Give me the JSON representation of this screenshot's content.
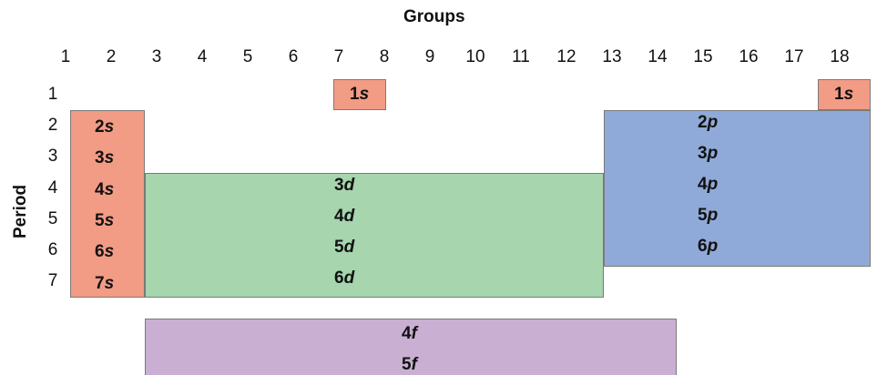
{
  "title": "Groups",
  "ylabel": "Period",
  "groups": [
    "1",
    "2",
    "3",
    "4",
    "5",
    "6",
    "7",
    "8",
    "9",
    "10",
    "11",
    "12",
    "13",
    "14",
    "15",
    "16",
    "17",
    "18"
  ],
  "periods": [
    "1",
    "2",
    "3",
    "4",
    "5",
    "6",
    "7"
  ],
  "blocks": {
    "s": {
      "color": "#f29b85",
      "labels": [
        {
          "n": "1",
          "o": "s"
        },
        {
          "n": "1",
          "o": "s"
        },
        {
          "n": "2",
          "o": "s"
        },
        {
          "n": "3",
          "o": "s"
        },
        {
          "n": "4",
          "o": "s"
        },
        {
          "n": "5",
          "o": "s"
        },
        {
          "n": "6",
          "o": "s"
        },
        {
          "n": "7",
          "o": "s"
        }
      ]
    },
    "d": {
      "color": "#a6d5ae",
      "labels": [
        {
          "n": "3",
          "o": "d"
        },
        {
          "n": "4",
          "o": "d"
        },
        {
          "n": "5",
          "o": "d"
        },
        {
          "n": "6",
          "o": "d"
        }
      ]
    },
    "p": {
      "color": "#8faad8",
      "labels": [
        {
          "n": "2",
          "o": "p"
        },
        {
          "n": "3",
          "o": "p"
        },
        {
          "n": "4",
          "o": "p"
        },
        {
          "n": "5",
          "o": "p"
        },
        {
          "n": "6",
          "o": "p"
        }
      ]
    },
    "f": {
      "color": "#c9b0d3",
      "labels": [
        {
          "n": "4",
          "o": "f"
        },
        {
          "n": "5",
          "o": "f"
        }
      ]
    }
  }
}
